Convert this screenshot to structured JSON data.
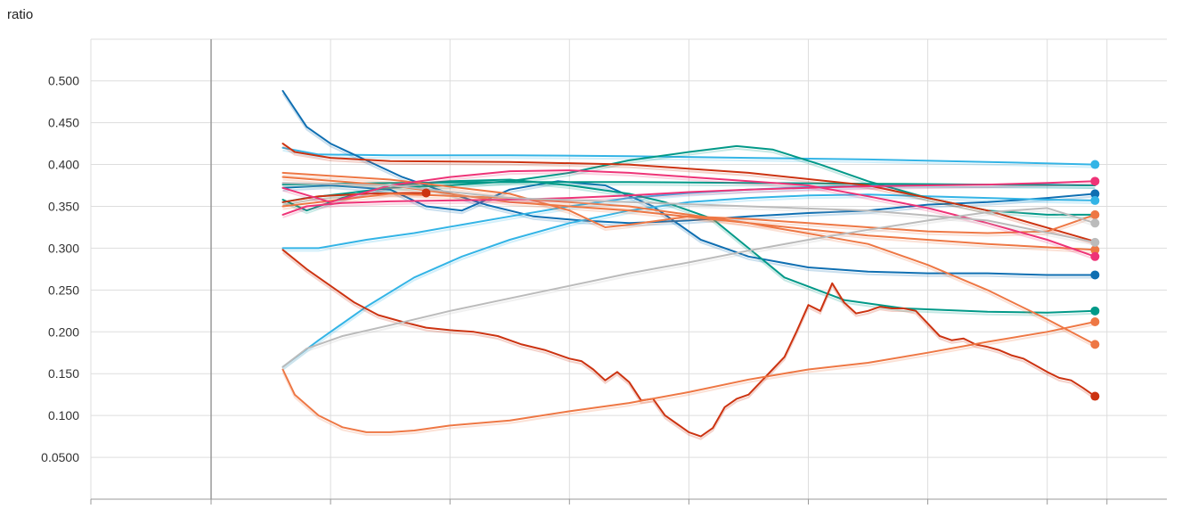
{
  "chart_data": {
    "type": "line",
    "title": "ratio",
    "xlabel": "",
    "ylabel": "",
    "ylim": [
      0.0,
      0.55
    ],
    "xlim": [
      -0.5,
      7.0
    ],
    "yticks": [
      0.05,
      0.1,
      0.15,
      0.2,
      0.25,
      0.3,
      0.35,
      0.4,
      0.45,
      0.5
    ],
    "ytick_labels": [
      "0.0500",
      "0.100",
      "0.150",
      "0.200",
      "0.250",
      "0.300",
      "0.350",
      "0.400",
      "0.450",
      "0.500"
    ],
    "xgrid": [
      -0.5,
      0.5,
      1.5,
      2.5,
      3.5,
      4.5,
      5.5,
      6.5,
      7.0
    ],
    "grid": true,
    "legend": "none",
    "series": [
      {
        "color": "#33b4e6",
        "end_marker": true,
        "x": [
          0.1,
          0.4,
          1,
          2,
          3,
          4,
          5,
          6,
          6.9
        ],
        "y": [
          0.42,
          0.412,
          0.411,
          0.411,
          0.41,
          0.408,
          0.406,
          0.403,
          0.4
        ]
      },
      {
        "color": "#0f6fb2",
        "end_marker": true,
        "x": [
          0.1,
          0.3,
          0.5,
          0.8,
          1.1,
          1.4,
          1.8,
          2.2,
          2.6,
          3,
          3.5,
          4,
          4.5,
          5,
          5.5,
          6,
          6.5,
          6.9
        ],
        "y": [
          0.488,
          0.445,
          0.425,
          0.405,
          0.385,
          0.37,
          0.352,
          0.338,
          0.333,
          0.33,
          0.333,
          0.338,
          0.342,
          0.345,
          0.352,
          0.355,
          0.36,
          0.365
        ]
      },
      {
        "color": "#0f6fb2",
        "end_marker": true,
        "x": [
          0.1,
          0.5,
          1,
          1.3,
          1.6,
          2,
          2.4,
          2.8,
          3.2,
          3.6,
          4,
          4.5,
          5,
          5.5,
          6,
          6.5,
          6.9
        ],
        "y": [
          0.372,
          0.375,
          0.37,
          0.35,
          0.345,
          0.37,
          0.38,
          0.375,
          0.35,
          0.31,
          0.29,
          0.277,
          0.272,
          0.27,
          0.27,
          0.268,
          0.268
        ]
      },
      {
        "color": "#33b4e6",
        "end_marker": true,
        "x": [
          0.1,
          0.4,
          0.8,
          1.2,
          1.6,
          2,
          2.5,
          3,
          3.5,
          4,
          4.5,
          5,
          5.5,
          6,
          6.5,
          6.9
        ],
        "y": [
          0.158,
          0.19,
          0.23,
          0.265,
          0.29,
          0.31,
          0.33,
          0.345,
          0.355,
          0.36,
          0.363,
          0.364,
          0.362,
          0.36,
          0.358,
          0.357
        ]
      },
      {
        "color": "#33b4e6",
        "end_marker": false,
        "x": [
          0.1,
          0.4,
          0.8,
          1.2,
          1.6,
          2,
          2.5,
          3,
          3.5,
          4,
          4.5,
          5,
          5.5,
          6,
          6.5,
          6.9
        ],
        "y": [
          0.3,
          0.3,
          0.31,
          0.318,
          0.328,
          0.338,
          0.35,
          0.36,
          0.366,
          0.37,
          0.373,
          0.375,
          0.376,
          0.376,
          0.376,
          0.375
        ]
      },
      {
        "color": "#009988",
        "end_marker": true,
        "x": [
          0.1,
          0.3,
          0.6,
          1,
          1.5,
          2,
          2.5,
          3,
          3.3,
          3.7,
          4,
          4.3,
          4.8,
          5.3,
          6,
          6.5,
          6.9
        ],
        "y": [
          0.358,
          0.345,
          0.36,
          0.375,
          0.38,
          0.382,
          0.375,
          0.365,
          0.355,
          0.335,
          0.3,
          0.265,
          0.238,
          0.228,
          0.224,
          0.223,
          0.225
        ]
      },
      {
        "color": "#009988",
        "end_marker": false,
        "x": [
          0.1,
          0.3,
          0.6,
          1,
          1.5,
          2,
          2.5,
          3,
          3.5,
          3.9,
          4.2,
          4.6,
          5,
          5.5,
          6,
          6.5,
          6.9
        ],
        "y": [
          0.355,
          0.36,
          0.365,
          0.372,
          0.375,
          0.38,
          0.39,
          0.405,
          0.415,
          0.422,
          0.418,
          0.4,
          0.38,
          0.36,
          0.345,
          0.34,
          0.34
        ]
      },
      {
        "color": "#009988",
        "end_marker": false,
        "x": [
          0.1,
          1,
          2,
          3,
          4,
          5,
          6,
          6.9
        ],
        "y": [
          0.376,
          0.378,
          0.379,
          0.379,
          0.378,
          0.377,
          0.376,
          0.375
        ]
      },
      {
        "color": "#cc3311",
        "end_marker": false,
        "x": [
          0.1,
          0.2,
          0.5,
          1,
          2,
          3,
          4,
          5,
          6,
          6.9
        ],
        "y": [
          0.425,
          0.415,
          0.408,
          0.404,
          0.403,
          0.4,
          0.39,
          0.375,
          0.345,
          0.308
        ]
      },
      {
        "color": "#cc3311",
        "end_marker": true,
        "x": [
          0.1,
          0.3,
          0.5,
          0.7,
          0.9,
          1.1,
          1.3,
          1.5,
          1.7,
          1.9,
          2.1,
          2.3,
          2.5,
          2.6,
          2.7,
          2.8,
          2.9,
          3,
          3.1,
          3.2,
          3.3,
          3.4,
          3.5,
          3.6,
          3.7,
          3.8,
          3.9,
          4,
          4.1,
          4.2,
          4.3,
          4.4,
          4.5,
          4.6,
          4.7,
          4.8,
          4.9,
          5,
          5.1,
          5.2,
          5.3,
          5.4,
          5.5,
          5.6,
          5.7,
          5.8,
          5.9,
          6,
          6.1,
          6.2,
          6.3,
          6.4,
          6.5,
          6.6,
          6.7,
          6.8,
          6.9
        ],
        "y": [
          0.298,
          0.275,
          0.255,
          0.235,
          0.22,
          0.212,
          0.205,
          0.202,
          0.2,
          0.195,
          0.185,
          0.178,
          0.168,
          0.165,
          0.155,
          0.142,
          0.152,
          0.14,
          0.118,
          0.12,
          0.1,
          0.09,
          0.08,
          0.075,
          0.085,
          0.11,
          0.12,
          0.125,
          0.14,
          0.155,
          0.17,
          0.2,
          0.232,
          0.225,
          0.258,
          0.235,
          0.222,
          0.225,
          0.23,
          0.228,
          0.228,
          0.225,
          0.21,
          0.195,
          0.19,
          0.192,
          0.185,
          0.182,
          0.178,
          0.172,
          0.168,
          0.16,
          0.152,
          0.145,
          0.142,
          0.133,
          0.123
        ]
      },
      {
        "color": "#cc3311",
        "end_marker": true,
        "x": [
          0.1,
          0.4,
          0.8,
          1.1,
          1.2,
          1.3
        ],
        "y": [
          0.355,
          0.362,
          0.365,
          0.366,
          0.366,
          0.366
        ]
      },
      {
        "color": "#ee7744",
        "end_marker": true,
        "x": [
          0.1,
          0.2,
          0.4,
          0.6,
          0.8,
          1,
          1.2,
          1.5,
          2,
          2.5,
          3,
          3.5,
          4,
          4.5,
          5,
          5.5,
          6,
          6.5,
          6.9
        ],
        "y": [
          0.155,
          0.125,
          0.1,
          0.086,
          0.08,
          0.08,
          0.082,
          0.088,
          0.094,
          0.105,
          0.115,
          0.128,
          0.143,
          0.155,
          0.163,
          0.175,
          0.188,
          0.2,
          0.212
        ]
      },
      {
        "color": "#ee7744",
        "end_marker": true,
        "x": [
          0.1,
          1,
          2,
          2.5,
          2.8,
          3,
          3.5,
          4,
          4.5,
          5,
          5.5,
          6,
          6.5,
          6.9
        ],
        "y": [
          0.39,
          0.382,
          0.365,
          0.345,
          0.325,
          0.328,
          0.338,
          0.335,
          0.33,
          0.325,
          0.32,
          0.318,
          0.32,
          0.34
        ]
      },
      {
        "color": "#ee7744",
        "end_marker": true,
        "x": [
          0.1,
          1,
          2,
          3,
          4,
          5,
          5.5,
          6,
          6.5,
          6.9
        ],
        "y": [
          0.385,
          0.375,
          0.355,
          0.345,
          0.33,
          0.305,
          0.28,
          0.25,
          0.215,
          0.185
        ]
      },
      {
        "color": "#ee7744",
        "end_marker": true,
        "x": [
          0.1,
          1,
          2,
          3,
          4,
          5,
          6,
          6.9
        ],
        "y": [
          0.35,
          0.365,
          0.36,
          0.35,
          0.33,
          0.315,
          0.305,
          0.298
        ]
      },
      {
        "color": "#ee3377",
        "end_marker": true,
        "x": [
          0.1,
          0.5,
          1,
          1.5,
          2,
          2.5,
          3,
          3.5,
          4,
          4.5,
          5,
          5.5,
          6,
          6.5,
          6.9
        ],
        "y": [
          0.372,
          0.355,
          0.375,
          0.385,
          0.392,
          0.393,
          0.39,
          0.385,
          0.38,
          0.375,
          0.362,
          0.348,
          0.33,
          0.31,
          0.29
        ]
      },
      {
        "color": "#ee3377",
        "end_marker": true,
        "x": [
          0.1,
          0.3,
          0.6,
          1,
          1.5,
          2,
          2.5,
          3,
          3.5,
          4,
          4.5,
          5,
          5.5,
          6,
          6.5,
          6.9
        ],
        "y": [
          0.34,
          0.35,
          0.354,
          0.356,
          0.357,
          0.358,
          0.36,
          0.363,
          0.367,
          0.37,
          0.372,
          0.374,
          0.375,
          0.376,
          0.378,
          0.38
        ]
      },
      {
        "color": "#bbbbbb",
        "end_marker": true,
        "x": [
          0.1,
          0.3,
          0.6,
          1,
          1.5,
          2,
          2.5,
          3,
          3.5,
          4,
          4.5,
          5,
          5.5,
          6,
          6.5,
          6.9
        ],
        "y": [
          0.158,
          0.18,
          0.195,
          0.208,
          0.225,
          0.24,
          0.255,
          0.27,
          0.283,
          0.297,
          0.31,
          0.322,
          0.333,
          0.343,
          0.348,
          0.33
        ]
      },
      {
        "color": "#bbbbbb",
        "end_marker": true,
        "x": [
          0.1,
          1,
          2,
          3,
          4,
          5,
          6,
          6.9
        ],
        "y": [
          0.378,
          0.375,
          0.36,
          0.355,
          0.35,
          0.345,
          0.333,
          0.307
        ]
      }
    ]
  }
}
